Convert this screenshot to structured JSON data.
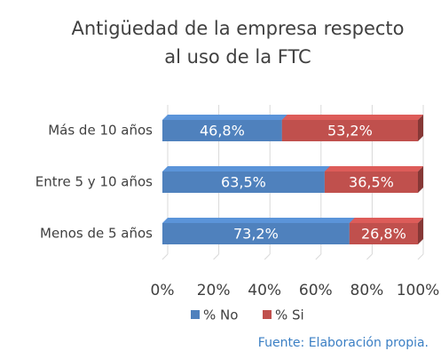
{
  "chart_data": {
    "type": "stacked_barh",
    "title": [
      "Antigüedad de la empresa respecto",
      "al uso de la FTC"
    ],
    "categories": [
      "Más de 10 años",
      "Entre 5 y 10 años",
      "Menos de 5 años"
    ],
    "series": [
      {
        "name": "% No",
        "color": "#4f81bd",
        "values": [
          46.8,
          63.5,
          73.2
        ],
        "value_labels": [
          "46,8%",
          "63,5%",
          "73,2%"
        ]
      },
      {
        "name": "% Si",
        "color": "#c0504d",
        "values": [
          53.2,
          36.5,
          26.8
        ],
        "value_labels": [
          "53,2%",
          "36,5%",
          "26,8%"
        ]
      }
    ],
    "xlim": [
      0,
      100
    ],
    "xticks": [
      {
        "value": 0,
        "label": "0%"
      },
      {
        "value": 20,
        "label": "20%"
      },
      {
        "value": 40,
        "label": "40%"
      },
      {
        "value": 60,
        "label": "60%"
      },
      {
        "value": 80,
        "label": "80%"
      },
      {
        "value": 100,
        "label": "100%"
      }
    ],
    "grid": true,
    "legend": "bottom",
    "source": "Fuente: Elaboración propia."
  }
}
